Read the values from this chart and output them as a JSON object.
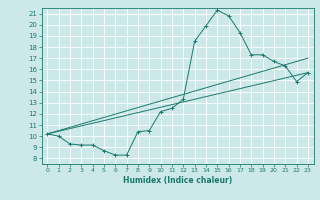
{
  "xlabel": "Humidex (Indice chaleur)",
  "ylabel": "",
  "xlim": [
    -0.5,
    23.5
  ],
  "ylim": [
    7.5,
    21.5
  ],
  "xticks": [
    0,
    1,
    2,
    3,
    4,
    5,
    6,
    7,
    8,
    9,
    10,
    11,
    12,
    13,
    14,
    15,
    16,
    17,
    18,
    19,
    20,
    21,
    22,
    23
  ],
  "yticks": [
    8,
    9,
    10,
    11,
    12,
    13,
    14,
    15,
    16,
    17,
    18,
    19,
    20,
    21
  ],
  "bg_color": "#cce8e8",
  "line_color": "#1a7a6e",
  "grid_color": "#ffffff",
  "main_line": {
    "x": [
      0,
      1,
      2,
      3,
      4,
      5,
      6,
      7,
      8,
      9,
      10,
      11,
      12,
      13,
      14,
      15,
      16,
      17,
      18,
      19,
      20,
      21,
      22,
      23
    ],
    "y": [
      10.2,
      10.0,
      9.3,
      9.2,
      9.2,
      8.7,
      8.3,
      8.3,
      10.4,
      10.5,
      12.2,
      12.5,
      13.3,
      18.5,
      19.9,
      21.3,
      20.8,
      19.3,
      17.3,
      17.3,
      16.7,
      16.3,
      14.9,
      15.7
    ]
  },
  "line2": {
    "x": [
      0,
      23
    ],
    "y": [
      10.2,
      17.0
    ]
  },
  "line3": {
    "x": [
      0,
      23
    ],
    "y": [
      10.2,
      15.7
    ]
  }
}
